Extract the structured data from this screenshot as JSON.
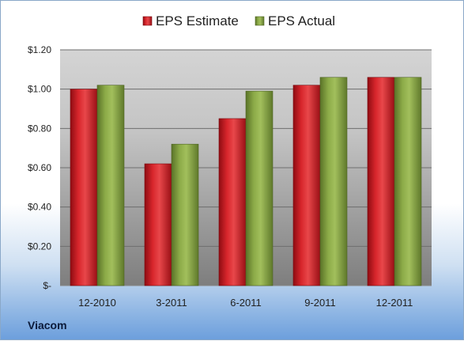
{
  "chart_data": {
    "type": "bar",
    "categories": [
      "12-2010",
      "3-2011",
      "6-2011",
      "9-2011",
      "12-2011"
    ],
    "series": [
      {
        "name": "EPS Estimate",
        "values": [
          1.0,
          0.62,
          0.85,
          1.02,
          1.06
        ],
        "color": "#c0141c"
      },
      {
        "name": "EPS Actual",
        "values": [
          1.02,
          0.72,
          0.99,
          1.06,
          1.06
        ],
        "color": "#7f9e3c"
      }
    ],
    "y_ticks": [
      {
        "value": 0,
        "label": "$-"
      },
      {
        "value": 0.2,
        "label": "$0.20"
      },
      {
        "value": 0.4,
        "label": "$0.40"
      },
      {
        "value": 0.6,
        "label": "$0.60"
      },
      {
        "value": 0.8,
        "label": "$0.80"
      },
      {
        "value": 1.0,
        "label": "$1.00"
      },
      {
        "value": 1.2,
        "label": "$1.20"
      }
    ],
    "ylim": [
      0,
      1.2
    ],
    "grid": true,
    "legend_position": "top",
    "title": "",
    "xlabel": "",
    "ylabel": ""
  },
  "footer": {
    "company": "Viacom"
  }
}
